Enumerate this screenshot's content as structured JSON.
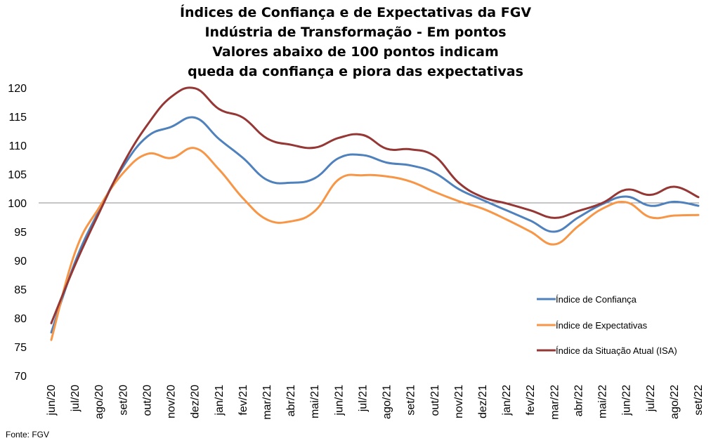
{
  "title": {
    "line1": "Índices de Confiança e de Expectativas da FGV",
    "line2": "Indústria de Transformação - Em pontos",
    "line3": "Valores abaixo de 100 pontos indicam",
    "line4": "queda da confiança e piora das expectativas"
  },
  "source": "Fonte: FGV",
  "chart_data": {
    "type": "line",
    "x": [
      "jun/20",
      "jul/20",
      "ago/20",
      "set/20",
      "out/20",
      "nov/20",
      "dez/20",
      "jan/21",
      "fev/21",
      "mar/21",
      "abr/21",
      "mai/21",
      "jun/21",
      "jul/21",
      "ago/21",
      "set/21",
      "out/21",
      "nov/21",
      "dez/21",
      "jan/22",
      "fev/22",
      "mar/22",
      "abr/22",
      "mai/22",
      "jun/22",
      "jul/22",
      "ago/22",
      "set/22"
    ],
    "ylim": [
      70,
      120
    ],
    "yticks": [
      70,
      75,
      80,
      85,
      90,
      95,
      100,
      105,
      110,
      115,
      120
    ],
    "reference_line": 100,
    "grid": false,
    "legend_position": "right",
    "series": [
      {
        "name": "Índice de Confiança",
        "color": "#4f81bd",
        "values": [
          77.5,
          89.8,
          98.7,
          106.3,
          111.5,
          113.2,
          114.8,
          111.1,
          107.8,
          104.0,
          103.5,
          104.3,
          107.8,
          108.3,
          107.0,
          106.5,
          105.2,
          102.4,
          100.5,
          98.7,
          96.9,
          95.0,
          97.5,
          99.8,
          101.1,
          99.5,
          100.2,
          99.5
        ]
      },
      {
        "name": "Índice de Expectativas",
        "color": "#f79646",
        "values": [
          76.2,
          91.5,
          99.2,
          105.2,
          108.5,
          107.8,
          109.5,
          105.8,
          100.8,
          97.1,
          96.8,
          98.6,
          104.1,
          104.8,
          104.6,
          103.7,
          101.9,
          100.3,
          99.0,
          97.1,
          95.0,
          92.8,
          96.0,
          99.0,
          100.1,
          97.5,
          97.8,
          97.9
        ]
      },
      {
        "name": "Índice da Situação Atual (ISA)",
        "color": "#953735",
        "values": [
          79.1,
          89.3,
          98.3,
          106.8,
          113.5,
          118.4,
          119.9,
          116.3,
          114.8,
          111.2,
          110.1,
          109.6,
          111.3,
          111.8,
          109.4,
          109.3,
          108.1,
          103.5,
          101.0,
          99.9,
          98.7,
          97.4,
          98.6,
          100.0,
          102.3,
          101.4,
          102.8,
          101.0
        ]
      }
    ]
  }
}
